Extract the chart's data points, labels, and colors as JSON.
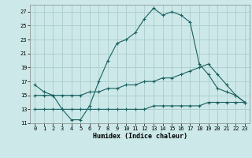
{
  "xlabel": "Humidex (Indice chaleur)",
  "background_color": "#cce8e8",
  "grid_color": "#b0d0d0",
  "line_color": "#1a6060",
  "xlim": [
    -0.5,
    23.5
  ],
  "ylim": [
    11,
    28
  ],
  "yticks": [
    11,
    13,
    15,
    17,
    19,
    21,
    23,
    25,
    27
  ],
  "xticks": [
    0,
    1,
    2,
    3,
    4,
    5,
    6,
    7,
    8,
    9,
    10,
    11,
    12,
    13,
    14,
    15,
    16,
    17,
    18,
    19,
    20,
    21,
    22,
    23
  ],
  "line1_x": [
    0,
    1,
    2,
    3,
    4,
    5,
    6,
    7,
    8,
    9,
    10,
    11,
    12,
    13,
    14,
    15,
    16,
    17,
    18,
    19,
    20,
    21,
    22,
    23
  ],
  "line1_y": [
    16.5,
    15.5,
    15.0,
    13.0,
    11.5,
    11.5,
    13.5,
    17.0,
    20.0,
    22.5,
    23.0,
    24.0,
    26.0,
    27.5,
    26.5,
    27.0,
    26.5,
    25.5,
    19.5,
    18.0,
    16.0,
    15.5,
    15.0,
    14.0
  ],
  "line2_x": [
    0,
    1,
    2,
    3,
    4,
    5,
    6,
    7,
    8,
    9,
    10,
    11,
    12,
    13,
    14,
    15,
    16,
    17,
    18,
    19,
    20,
    21,
    22,
    23
  ],
  "line2_y": [
    15.0,
    15.0,
    15.0,
    15.0,
    15.0,
    15.0,
    15.5,
    15.5,
    16.0,
    16.0,
    16.5,
    16.5,
    17.0,
    17.0,
    17.5,
    17.5,
    18.0,
    18.5,
    19.0,
    19.5,
    18.0,
    16.5,
    15.0,
    14.0
  ],
  "line3_x": [
    0,
    1,
    2,
    3,
    4,
    5,
    6,
    7,
    8,
    9,
    10,
    11,
    12,
    13,
    14,
    15,
    16,
    17,
    18,
    19,
    20,
    21,
    22,
    23
  ],
  "line3_y": [
    13.0,
    13.0,
    13.0,
    13.0,
    13.0,
    13.0,
    13.0,
    13.0,
    13.0,
    13.0,
    13.0,
    13.0,
    13.0,
    13.5,
    13.5,
    13.5,
    13.5,
    13.5,
    13.5,
    14.0,
    14.0,
    14.0,
    14.0,
    14.0
  ]
}
